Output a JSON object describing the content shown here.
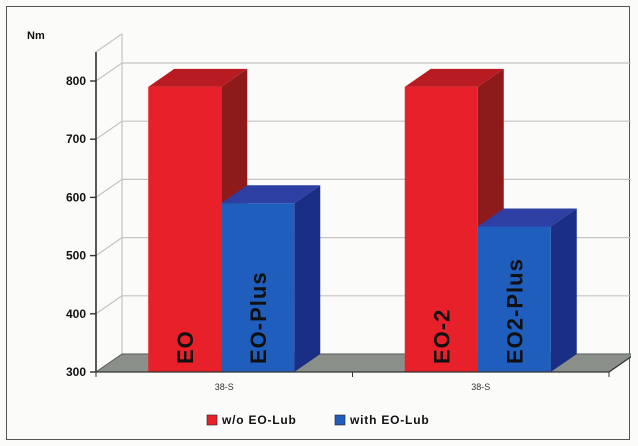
{
  "chart_data": {
    "type": "bar",
    "ylabel": "Nm",
    "ylim": [
      300,
      850
    ],
    "yticks": [
      300,
      400,
      500,
      600,
      700,
      800
    ],
    "grid": true,
    "three_d": true,
    "legend_position": "bottom",
    "categories": [
      "38-S",
      "38-S"
    ],
    "series": [
      {
        "name": "w/o EO-Lub",
        "color": "#e8202a",
        "side_color": "#8e1a1c",
        "top_color": "#b81c22",
        "values": [
          790,
          790
        ],
        "bar_labels": [
          "EO",
          "EO-2"
        ]
      },
      {
        "name": "with EO-Lub",
        "color": "#1f5ebd",
        "side_color": "#1b2e86",
        "top_color": "#2d3fa3",
        "values": [
          590,
          550
        ],
        "bar_labels": [
          "EO-Plus",
          "EO2-Plus"
        ]
      }
    ],
    "colors": {
      "floor": "#8a8f8a",
      "grid": "#c4c4c4",
      "axis": "#333333",
      "label_text": "#101010"
    }
  }
}
